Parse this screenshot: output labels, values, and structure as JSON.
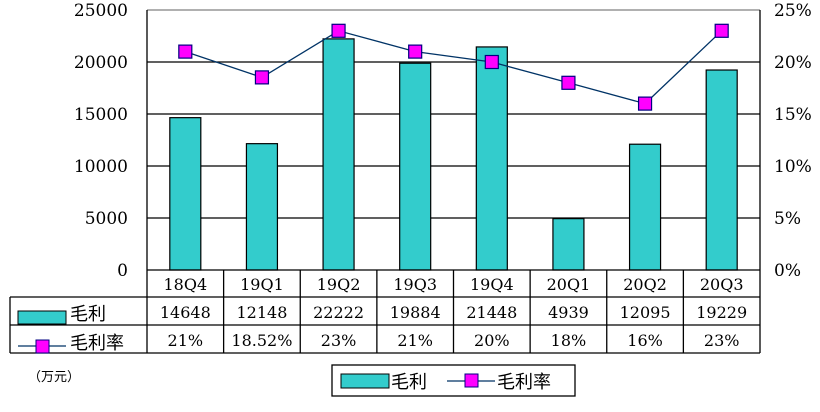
{
  "chart_data": {
    "type": "bar+line",
    "title": "",
    "unit_label": "（万元）",
    "categories": [
      "18Q4",
      "19Q1",
      "19Q2",
      "19Q3",
      "19Q4",
      "20Q1",
      "20Q2",
      "20Q3"
    ],
    "series": [
      {
        "name": "毛利",
        "type": "bar",
        "axis": "left",
        "color": "#33CCCC",
        "values": [
          14648,
          12148,
          22222,
          19884,
          21448,
          4939,
          12095,
          19229
        ],
        "labels": [
          "14648",
          "12148",
          "22222",
          "19884",
          "21448",
          "4939",
          "12095",
          "19229"
        ]
      },
      {
        "name": "毛利率",
        "type": "line",
        "axis": "right",
        "color": "#FF00FF",
        "line_color": "#003366",
        "values": [
          21,
          18.52,
          23,
          21,
          20,
          18,
          16,
          23
        ],
        "labels": [
          "21%",
          "18.52%",
          "23%",
          "21%",
          "20%",
          "18%",
          "16%",
          "23%"
        ]
      }
    ],
    "left_axis": {
      "ylim": [
        0,
        25000
      ],
      "ticks": [
        "0",
        "5000",
        "10000",
        "15000",
        "20000",
        "25000"
      ]
    },
    "right_axis": {
      "ylim": [
        0,
        25
      ],
      "ticks": [
        "0%",
        "5%",
        "10%",
        "15%",
        "20%",
        "25%"
      ]
    },
    "grid": true,
    "data_table": true,
    "legend": {
      "position": "bottom",
      "entries": [
        "毛利",
        "毛利率"
      ]
    }
  }
}
